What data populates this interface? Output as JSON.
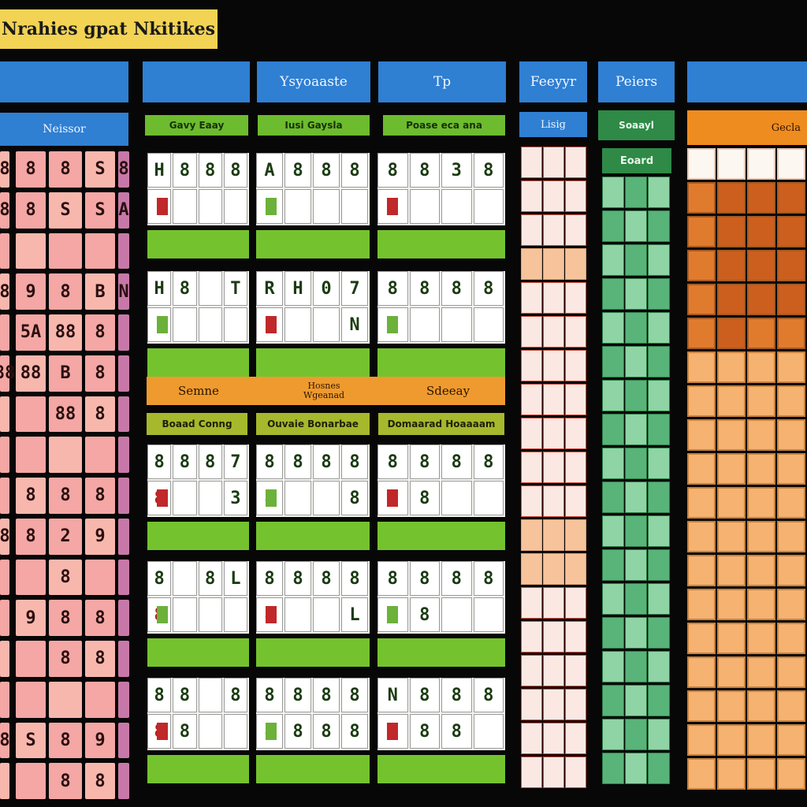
{
  "title": "Nrahies gpat Nkitikes",
  "headers": {
    "h1": "",
    "h2": "",
    "h3": "Ysyoaaste",
    "h4": "Tp",
    "h5": "Feeyyr",
    "h6": "Peiers",
    "h7": ""
  },
  "left_panel": {
    "header": "Neissor"
  },
  "green_bands": {
    "b1": "Gavy Eaay",
    "b2": "Iusi Gaysla",
    "b3": "Poase eca ana"
  },
  "blue_small": {
    "label": "Lisig"
  },
  "green_right": {
    "header": "Soaayl",
    "sub": "Eoard"
  },
  "orange_right": {
    "header": "Gecla"
  },
  "middle_orange": {
    "left": "Semne",
    "mid": "Hosnes Wgeanad",
    "right": "Sdeeay"
  },
  "olive_bands": {
    "b1": "Boaad Conng",
    "b2": "Ouvaie Bonarbae",
    "b3": "Domaarad Hoaaaam"
  },
  "pink_grid": [
    [
      "8",
      "8",
      "8",
      "S",
      "8"
    ],
    [
      "8",
      "8",
      "S",
      "S",
      "A"
    ],
    [
      "",
      "",
      "",
      "",
      ""
    ],
    [
      "8",
      "9",
      "8",
      "B",
      "N"
    ],
    [
      "",
      "5A",
      "88",
      "8",
      ""
    ],
    [
      "88",
      "88",
      "B",
      "8",
      ""
    ],
    [
      "",
      "",
      "88",
      "8",
      ""
    ],
    [
      "",
      "",
      "",
      "",
      ""
    ],
    [
      "",
      "8",
      "8",
      "8",
      ""
    ],
    [
      "8",
      "8",
      "2",
      "9",
      ""
    ],
    [
      "",
      "",
      "8",
      "",
      ""
    ],
    [
      "",
      "9",
      "8",
      "8",
      ""
    ],
    [
      "",
      "",
      "8",
      "8",
      ""
    ],
    [
      "",
      "",
      "",
      "",
      ""
    ],
    [
      "8",
      "S",
      "8",
      "9",
      ""
    ],
    [
      "",
      "",
      "8",
      "8",
      ""
    ]
  ],
  "cards": [
    {
      "top": [
        "H",
        "8",
        "8",
        "8"
      ],
      "bot": [
        "",
        "",
        "",
        ""
      ],
      "red": [
        false,
        false,
        false,
        false
      ]
    },
    {
      "top": [
        "A",
        "8",
        "8",
        "8"
      ],
      "bot": [
        "",
        "",
        "",
        ""
      ],
      "red": [
        false,
        false,
        false,
        false
      ]
    },
    {
      "top": [
        "8",
        "8",
        "3",
        "8"
      ],
      "bot": [
        "",
        "",
        "",
        ""
      ],
      "red": [
        false,
        false,
        false,
        false
      ]
    },
    {
      "top": [
        "H",
        "8",
        "",
        "T"
      ],
      "bot": [
        "",
        "",
        "",
        ""
      ],
      "red": [
        false,
        false,
        false,
        false
      ]
    },
    {
      "top": [
        "R",
        "H",
        "0",
        "7"
      ],
      "bot": [
        "",
        "",
        "",
        "N"
      ],
      "red": [
        false,
        false,
        false,
        false
      ]
    },
    {
      "top": [
        "8",
        "8",
        "8",
        "8"
      ],
      "bot": [
        "",
        "",
        "",
        ""
      ],
      "red": [
        false,
        false,
        false,
        false
      ]
    },
    {
      "top": [
        "8",
        "8",
        "8",
        "7"
      ],
      "bot": [
        "8",
        "",
        "",
        "3"
      ],
      "red": [
        false,
        false,
        false,
        false
      ]
    },
    {
      "top": [
        "8",
        "8",
        "8",
        "8"
      ],
      "bot": [
        "8",
        "",
        "",
        "8"
      ],
      "red": [
        false,
        false,
        false,
        false
      ]
    },
    {
      "top": [
        "8",
        "8",
        "8",
        "8"
      ],
      "bot": [
        "",
        "8",
        "",
        "",
        ""
      ],
      "red": [
        false,
        false,
        false,
        false
      ]
    },
    {
      "top": [
        "8",
        "",
        "8",
        "L"
      ],
      "bot": [
        "8",
        "",
        "",
        ""
      ],
      "red": [
        false,
        false,
        false,
        false
      ]
    },
    {
      "top": [
        "8",
        "8",
        "8",
        "8"
      ],
      "bot": [
        "8",
        "",
        "",
        "L"
      ],
      "red": [
        false,
        false,
        false,
        false
      ]
    },
    {
      "top": [
        "8",
        "8",
        "8",
        "8"
      ],
      "bot": [
        "",
        "8",
        "",
        ""
      ],
      "red": [
        false,
        false,
        false,
        false
      ]
    },
    {
      "top": [
        "8",
        "8",
        "",
        "8"
      ],
      "bot": [
        "8",
        "8",
        "",
        ""
      ],
      "red": [
        false,
        false,
        false,
        false
      ]
    },
    {
      "top": [
        "8",
        "8",
        "8",
        "8"
      ],
      "bot": [
        "8",
        "8",
        "8",
        "8"
      ],
      "red": [
        false,
        false,
        false,
        false
      ]
    },
    {
      "top": [
        "N",
        "8",
        "8",
        "8"
      ],
      "bot": [
        "",
        "8",
        "8",
        ""
      ],
      "red": [
        false,
        false,
        false,
        false
      ]
    }
  ],
  "colors": {
    "background": "#070707",
    "title_yellow": "#f2d354",
    "header_blue": "#2f7fd2",
    "band_green": "#6dbb2e",
    "pink": "#f4a7a4",
    "orange": "#ef9a2e",
    "dark_green": "#2e8a46"
  }
}
